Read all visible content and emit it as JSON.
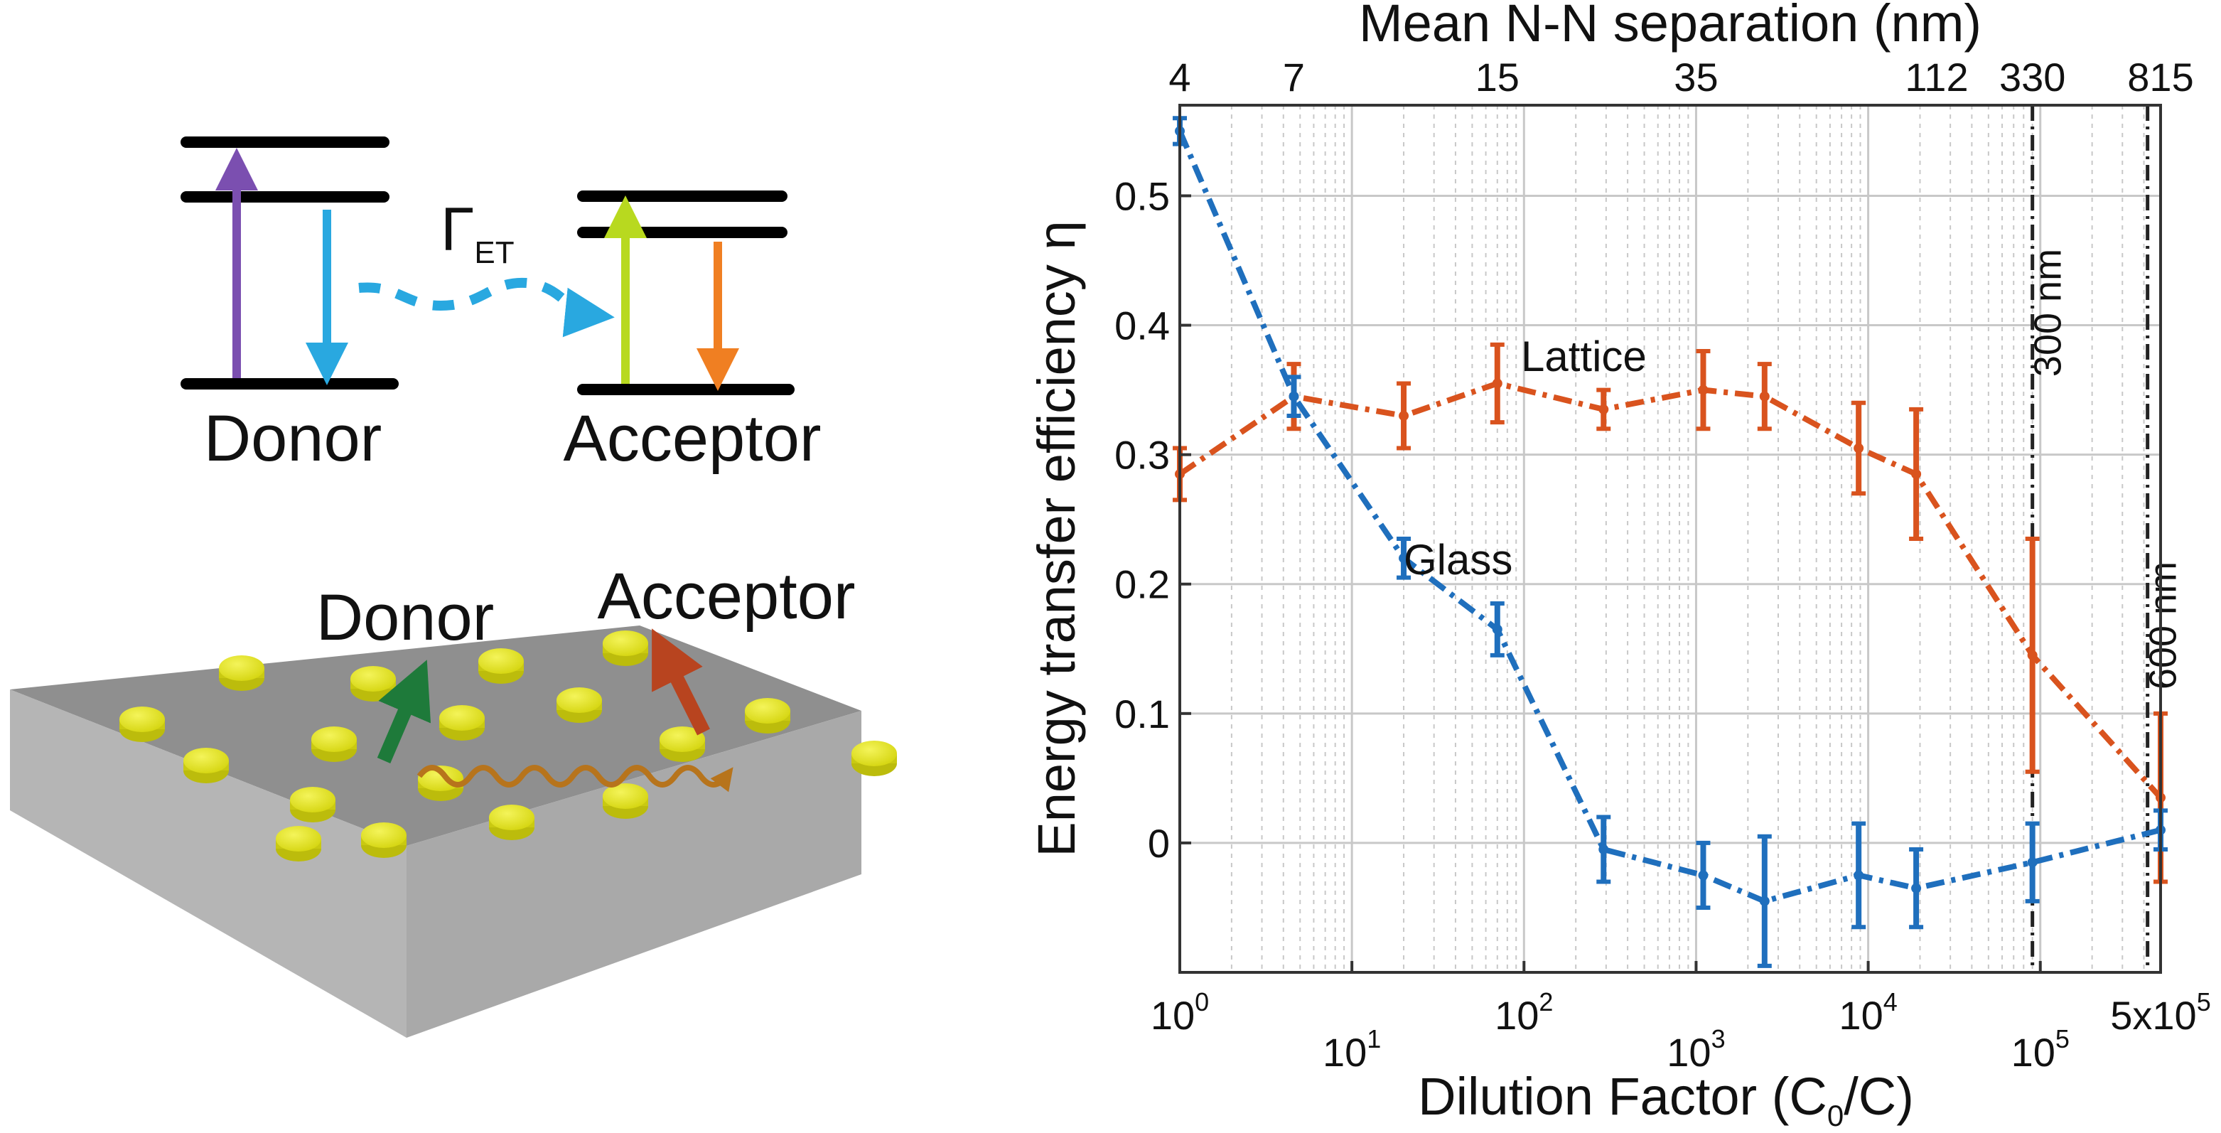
{
  "diagram": {
    "gamma_symbol": "Γ",
    "gamma_subscript": "ET",
    "donor_label": "Donor",
    "acceptor_label": "Acceptor",
    "slab_donor_label": "Donor",
    "slab_acceptor_label": "Acceptor",
    "colors": {
      "excite": "#7b4fb0",
      "donor_emit": "#29a8e0",
      "transfer": "#29a8e0",
      "acceptor_absorb": "#b8d91f",
      "acceptor_emit": "#f07f22",
      "slab": "#9a9a9a",
      "disk": "#e5e51a"
    }
  },
  "chart_data": {
    "type": "line",
    "x_scale": "log",
    "xlabel": "Dilution Factor (C",
    "xlabel_sub": "0",
    "xlabel_end": "/C)",
    "ylabel": "Energy transfer efficiency η",
    "top_axis_title": "Mean N-N separation (nm)",
    "xlim": [
      1,
      500000
    ],
    "ylim": [
      -0.1,
      0.57
    ],
    "x_ticks": [
      {
        "value": 1,
        "base": "10",
        "exp": "0"
      },
      {
        "value": 10,
        "base": "10",
        "exp": "1"
      },
      {
        "value": 100,
        "base": "10",
        "exp": "2"
      },
      {
        "value": 1000,
        "base": "10",
        "exp": "3"
      },
      {
        "value": 10000,
        "base": "10",
        "exp": "4"
      },
      {
        "value": 100000,
        "base": "10",
        "exp": "5"
      },
      {
        "value": 500000,
        "base": "5x10",
        "exp": "5"
      }
    ],
    "y_ticks": [
      {
        "value": 0,
        "label": "0"
      },
      {
        "value": 0.1,
        "label": "0.1"
      },
      {
        "value": 0.2,
        "label": "0.2"
      },
      {
        "value": 0.3,
        "label": "0.3"
      },
      {
        "value": 0.4,
        "label": "0.4"
      },
      {
        "value": 0.5,
        "label": "0.5"
      }
    ],
    "top_ticks": [
      {
        "x": 1,
        "label": "4"
      },
      {
        "x": 4.6,
        "label": "7"
      },
      {
        "x": 70,
        "label": "15"
      },
      {
        "x": 1000,
        "label": "35"
      },
      {
        "x": 25000,
        "label": "112"
      },
      {
        "x": 90000,
        "label": "330"
      },
      {
        "x": 500000,
        "label": "815"
      }
    ],
    "vlines": [
      {
        "x": 90000,
        "label": "300 nm"
      },
      {
        "x": 420000,
        "label": "600 nm"
      }
    ],
    "series": [
      {
        "name": "Lattice",
        "color": "#d9531e",
        "x": [
          1,
          4.6,
          20,
          70,
          290,
          1100,
          2500,
          8800,
          19000,
          90000,
          500000
        ],
        "y": [
          0.285,
          0.345,
          0.33,
          0.355,
          0.335,
          0.35,
          0.345,
          0.305,
          0.285,
          0.145,
          0.035
        ],
        "err": [
          0.02,
          0.025,
          0.025,
          0.03,
          0.015,
          0.03,
          0.025,
          0.035,
          0.05,
          0.09,
          0.065
        ]
      },
      {
        "name": "Glass",
        "color": "#1f6fbd",
        "x": [
          1,
          4.6,
          20,
          70,
          290,
          1100,
          2500,
          8800,
          19000,
          90000,
          500000
        ],
        "y": [
          0.55,
          0.345,
          0.22,
          0.165,
          -0.005,
          -0.025,
          -0.045,
          -0.025,
          -0.035,
          -0.015,
          0.01
        ],
        "err": [
          0.01,
          0.015,
          0.015,
          0.02,
          0.025,
          0.025,
          0.05,
          0.04,
          0.03,
          0.03,
          0.015
        ]
      }
    ]
  }
}
